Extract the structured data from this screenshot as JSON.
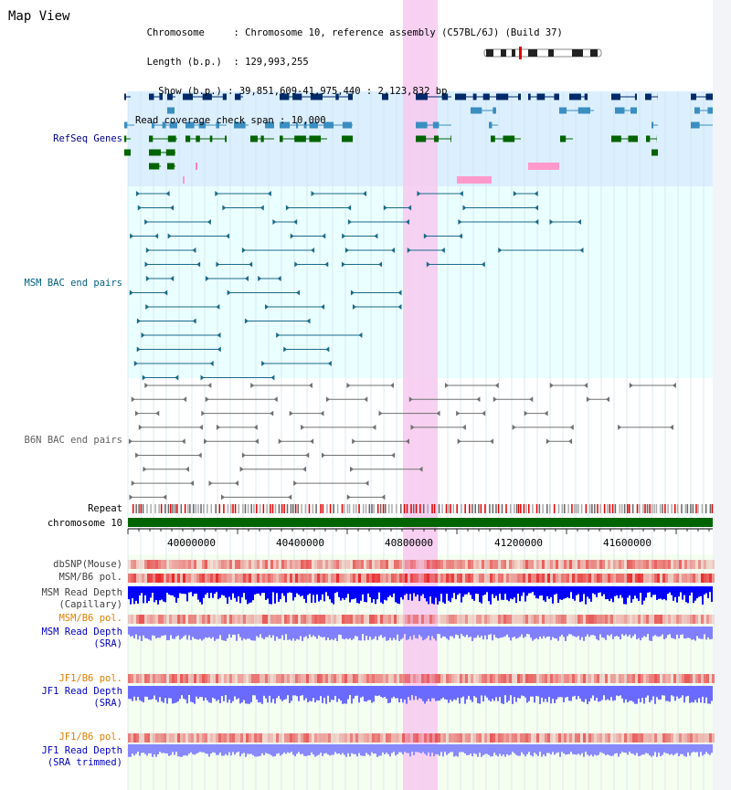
{
  "page_title": "Map View",
  "info": {
    "chromosome_key": "Chromosome",
    "chromosome_value": "Chromosome 10, reference assembly (C57BL/6J) (Build 37)",
    "length_key": "Length (b.p.)",
    "length_value": "129,993,255",
    "show_key": "Show (b.p.)",
    "show_value": "39,851,609-41,975,440 : 2,123,832 bp",
    "coverage_key": "Read coverage check span",
    "coverage_value": "10,000"
  },
  "tracks": {
    "refseq": "RefSeq Genes",
    "msm_bac": "MSM BAC end pairs",
    "b6n_bac": "B6N BAC end pairs",
    "repeat": "Repeat",
    "chromosome": "chromosome 10",
    "dbsnp": "dbSNP(Mouse)",
    "msm_b6_pol_1": "MSM/B6 pol.",
    "msm_depth_cap_1": "MSM Read Depth",
    "msm_depth_cap_2": "(Capillary)",
    "msm_b6_pol_2": "MSM/B6 pol.",
    "msm_depth_sra_1": "MSM Read Depth",
    "msm_depth_sra_2": "(SRA)",
    "jf1_b6_pol_1": "JF1/B6 pol.",
    "jf1_depth_sra_1": "JF1 Read Depth",
    "jf1_depth_sra_2": "(SRA)",
    "jf1_b6_pol_2": "JF1/B6 pol.",
    "jf1_depth_trim_1": "JF1 Read Depth",
    "jf1_depth_trim_2": "(SRA trimmed)"
  },
  "axis": {
    "ticks": [
      "40000000",
      "40400000",
      "40800000",
      "41200000",
      "41600000"
    ]
  },
  "colors": {
    "refseq_label": "#00008b",
    "msm_label": "#006080",
    "b6n_label": "#606060",
    "orange_label": "#e08000",
    "blue_label": "#0000c0",
    "highlight": "#f7c9f0"
  }
}
